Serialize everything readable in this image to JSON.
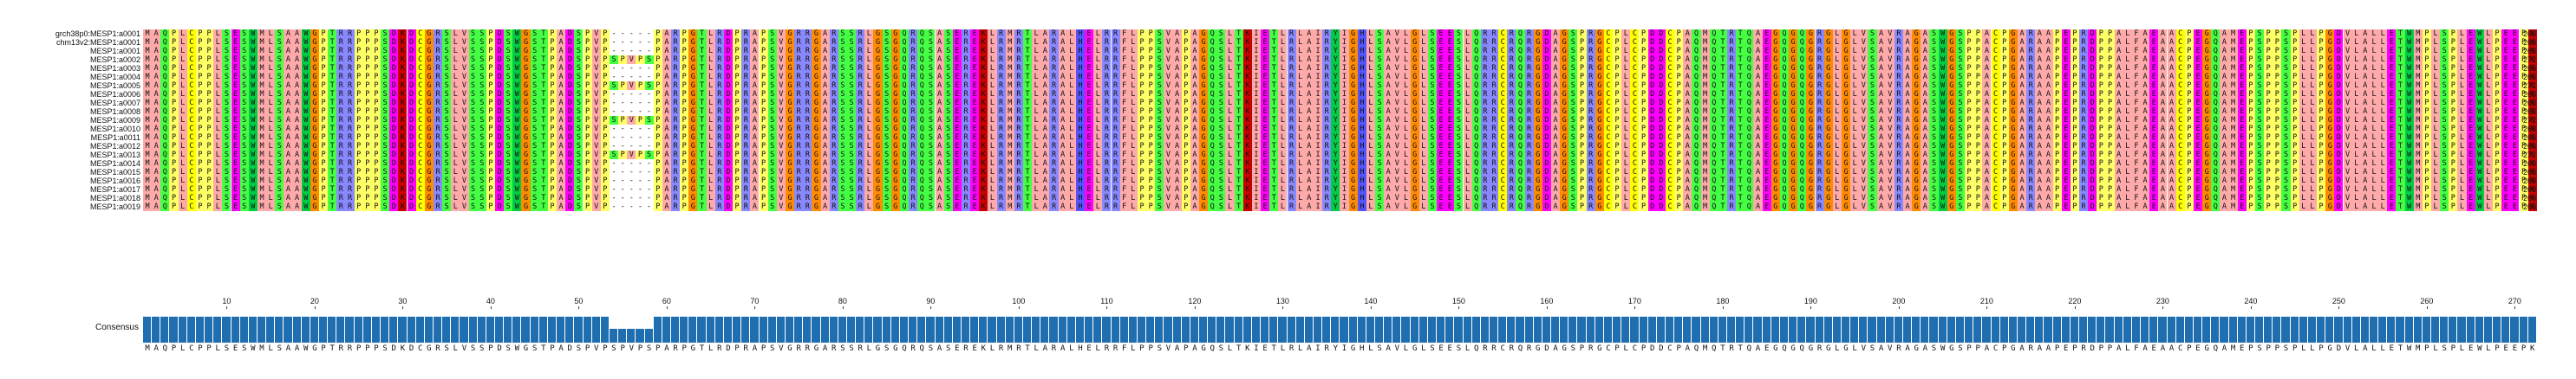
{
  "consensus_label": "Consensus",
  "colors": {
    "A": "#ffaaaa",
    "V": "#ffaaaa",
    "L": "#ffaaaa",
    "I": "#ffaaaa",
    "M": "#ffaaaa",
    "F": "#ffaaaa",
    "W": "#00cc44",
    "Y": "#00cc44",
    "C": "#ffff00",
    "G": "#ff8c00",
    "P": "#ffff66",
    "S": "#44ff44",
    "T": "#44ff44",
    "N": "#44ff44",
    "Q": "#44ff44",
    "D": "#ff00ff",
    "E": "#ff00ff",
    "K": "#cc0000",
    "R": "#8888ff",
    "H": "#5555ff",
    "-": "#ffffff",
    "consensus_bar": "#1f6fb0"
  },
  "sequences": [
    {
      "name": "grch38p0:MESP1:a0001",
      "length": "268"
    },
    {
      "name": "chm13v2:MESP1:a0001",
      "length": "268"
    },
    {
      "name": "MESP1:a0001",
      "length": "268"
    },
    {
      "name": "MESP1:a0002",
      "length": "272"
    },
    {
      "name": "MESP1:a0003",
      "length": "268"
    },
    {
      "name": "MESP1:a0004",
      "length": "268"
    },
    {
      "name": "MESP1:a0005",
      "length": "272"
    },
    {
      "name": "MESP1:a0006",
      "length": "268"
    },
    {
      "name": "MESP1:a0007",
      "length": "268"
    },
    {
      "name": "MESP1:a0008",
      "length": "268"
    },
    {
      "name": "MESP1:a0009",
      "length": "272"
    },
    {
      "name": "MESP1:a0010",
      "length": "268"
    },
    {
      "name": "MESP1:a0011",
      "length": "268"
    },
    {
      "name": "MESP1:a0012",
      "length": "268"
    },
    {
      "name": "MESP1:a0013",
      "length": "272"
    },
    {
      "name": "MESP1:a0014",
      "length": "268"
    },
    {
      "name": "MESP1:a0015",
      "length": "268"
    },
    {
      "name": "MESP1:a0016",
      "length": "268"
    },
    {
      "name": "MESP1:a0017",
      "length": "268"
    },
    {
      "name": "MESP1:a0018",
      "length": "268"
    },
    {
      "name": "MESP1:a0019",
      "length": "268"
    }
  ],
  "consensus": "MAQPLCPPLSESWMLSAAWGPTRRPPPSDKDCGRSLVSSPDSWGSTPADSPVPSPVPSPARPGTLRDPRAPSVGRRGARSSRLGSGQRQSASEREKLRMRTLARALHELRRFLPPSVAPAGQSLTKIETLRLAIRYIGHLSAVLGLSEESLQRRCRQRGDAGSPRGCPLCPDDCPAQMQTRTQAEGQGQGRGLGLVSAVRAGASWGSPPACPGARAAPEPRDPPALFAEAACPEGQAMEPSPPSPLLPGDVLALLETWMPLSPLEWLPEEPK",
  "ruler": [
    "10",
    "20",
    "30",
    "40",
    "50",
    "60",
    "70",
    "80",
    "90",
    "100",
    "110",
    "120",
    "130",
    "140",
    "150",
    "160",
    "170",
    "180",
    "190",
    "200",
    "210",
    "220",
    "230",
    "240",
    "250",
    "260",
    "270"
  ]
}
